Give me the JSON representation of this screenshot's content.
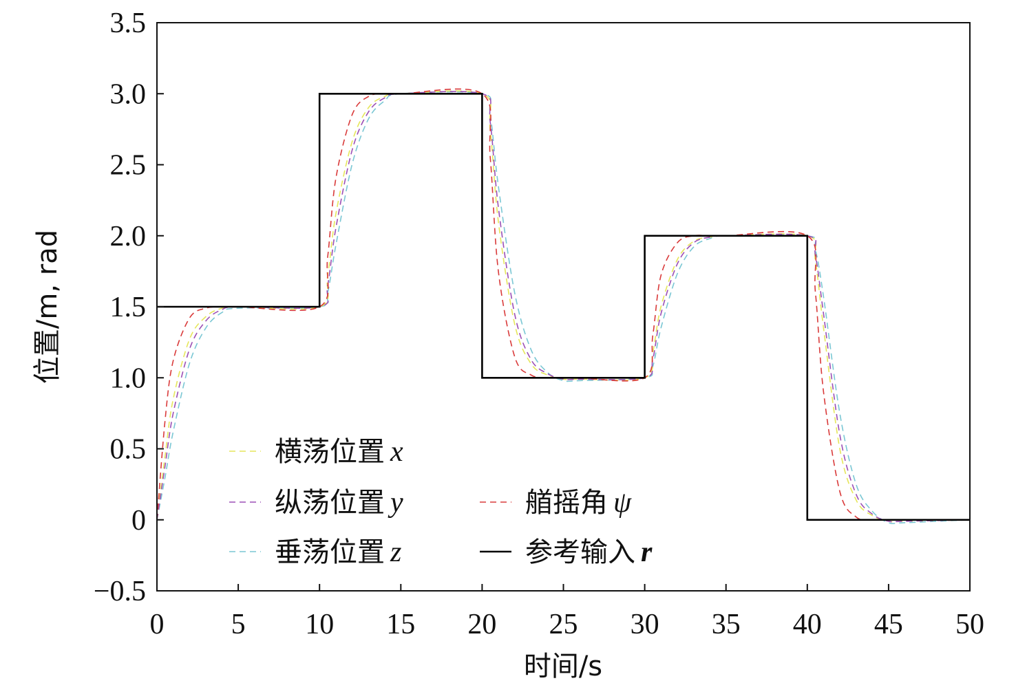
{
  "chart_data": {
    "type": "line",
    "xlabel": "时间/s",
    "ylabel": "位置/m, rad",
    "xlim": [
      0,
      50
    ],
    "ylim": [
      -0.5,
      3.5
    ],
    "xticks": [
      0,
      5,
      10,
      15,
      20,
      25,
      30,
      35,
      40,
      45,
      50
    ],
    "xtick_labels": [
      "0",
      "5",
      "10",
      "15",
      "20",
      "25",
      "30",
      "35",
      "40",
      "45",
      "50"
    ],
    "yticks": [
      -0.5,
      0,
      0.5,
      1.0,
      1.5,
      2.0,
      2.5,
      3.0,
      3.5
    ],
    "ytick_labels": [
      "−0.5",
      "0",
      "0.5",
      "1.0",
      "1.5",
      "2.0",
      "2.5",
      "3.0",
      "3.5"
    ],
    "grid": false,
    "legend_position": "bottom-left",
    "reference": {
      "steps": [
        [
          0,
          1.5
        ],
        [
          10,
          3.0
        ],
        [
          20,
          1.0
        ],
        [
          30,
          2.0
        ],
        [
          40,
          0
        ]
      ],
      "end": 50
    },
    "series": [
      {
        "name": "横荡位置",
        "symbol": "x",
        "color": "#e6e65a",
        "dash": "dashed",
        "x": [
          0,
          0.5,
          1,
          2,
          3,
          4,
          5,
          10,
          10.5,
          11,
          12,
          13,
          14,
          15,
          20,
          20.5,
          21,
          22,
          23,
          24,
          25,
          26,
          30,
          30.5,
          31,
          32,
          33,
          34,
          35,
          40,
          40.5,
          41,
          42,
          43,
          44,
          45,
          46,
          50
        ],
        "values": [
          0,
          0.45,
          0.85,
          1.27,
          1.43,
          1.49,
          1.5,
          1.5,
          1.72,
          2.15,
          2.66,
          2.9,
          2.98,
          3.0,
          3.0,
          2.74,
          2.1,
          1.38,
          1.1,
          1.02,
          0.99,
          0.99,
          1.0,
          1.18,
          1.5,
          1.83,
          1.96,
          1.99,
          2.0,
          2.0,
          1.82,
          1.35,
          0.5,
          0.14,
          0.03,
          -0.01,
          -0.01,
          0
        ]
      },
      {
        "name": "纵荡位置",
        "symbol": "y",
        "color": "#9b4fb5",
        "dash": "dashed",
        "x": [
          0,
          0.5,
          1,
          2,
          3,
          4,
          5,
          10,
          10.5,
          11,
          12,
          13,
          14,
          15,
          20,
          20.5,
          21,
          22,
          23,
          24,
          25,
          26,
          30,
          30.5,
          31,
          32,
          33,
          34,
          35,
          40,
          40.5,
          41,
          42,
          43,
          44,
          45,
          46,
          50
        ],
        "values": [
          0,
          0.38,
          0.75,
          1.2,
          1.4,
          1.48,
          1.5,
          1.5,
          1.65,
          2.05,
          2.6,
          2.87,
          2.97,
          3.0,
          3.0,
          2.8,
          2.2,
          1.45,
          1.13,
          1.03,
          0.99,
          0.99,
          1.0,
          1.13,
          1.45,
          1.8,
          1.95,
          1.99,
          2.0,
          2.0,
          1.86,
          1.45,
          0.6,
          0.18,
          0.04,
          -0.01,
          -0.01,
          0
        ]
      },
      {
        "name": "垂荡位置",
        "symbol": "z",
        "color": "#7ac7d4",
        "dash": "dashed",
        "x": [
          0,
          0.5,
          1,
          2,
          3,
          4,
          5,
          10,
          10.5,
          11,
          12,
          13,
          14,
          15,
          20,
          20.5,
          21,
          22,
          23,
          24,
          25,
          26,
          30,
          30.5,
          31,
          32,
          33,
          34,
          35,
          40,
          40.5,
          41,
          42,
          43,
          44,
          45,
          46,
          50
        ],
        "values": [
          0,
          0.3,
          0.62,
          1.1,
          1.35,
          1.46,
          1.49,
          1.5,
          1.6,
          1.93,
          2.5,
          2.82,
          2.95,
          3.0,
          3.0,
          2.85,
          2.35,
          1.6,
          1.2,
          1.04,
          0.98,
          0.98,
          1.0,
          1.08,
          1.35,
          1.73,
          1.92,
          1.98,
          2.0,
          2.0,
          1.9,
          1.57,
          0.75,
          0.25,
          0.06,
          -0.02,
          -0.02,
          0
        ]
      },
      {
        "name": "艏摇角",
        "symbol": "ψ",
        "color": "#d93a3a",
        "dash": "dashed",
        "x": [
          0,
          0.5,
          1,
          2,
          3,
          4,
          5,
          10,
          10.5,
          11,
          12,
          13,
          14,
          15,
          20,
          20.5,
          21,
          22,
          23,
          24,
          25,
          26,
          30,
          30.5,
          31,
          32,
          33,
          34,
          35,
          40,
          40.5,
          41,
          42,
          43,
          44,
          45,
          46,
          50
        ],
        "values": [
          0,
          0.7,
          1.12,
          1.42,
          1.49,
          1.5,
          1.5,
          1.5,
          1.85,
          2.4,
          2.85,
          2.98,
          3.0,
          3.0,
          3.0,
          2.55,
          1.75,
          1.15,
          1.02,
          1.0,
          1.0,
          1.0,
          1.0,
          1.3,
          1.72,
          1.95,
          2.0,
          2.0,
          2.0,
          2.0,
          1.6,
          0.9,
          0.2,
          0.02,
          0.0,
          0.0,
          0.0,
          0
        ]
      }
    ],
    "reference_legend": {
      "name": "参考输入",
      "symbol": "r",
      "color": "#000000"
    }
  }
}
